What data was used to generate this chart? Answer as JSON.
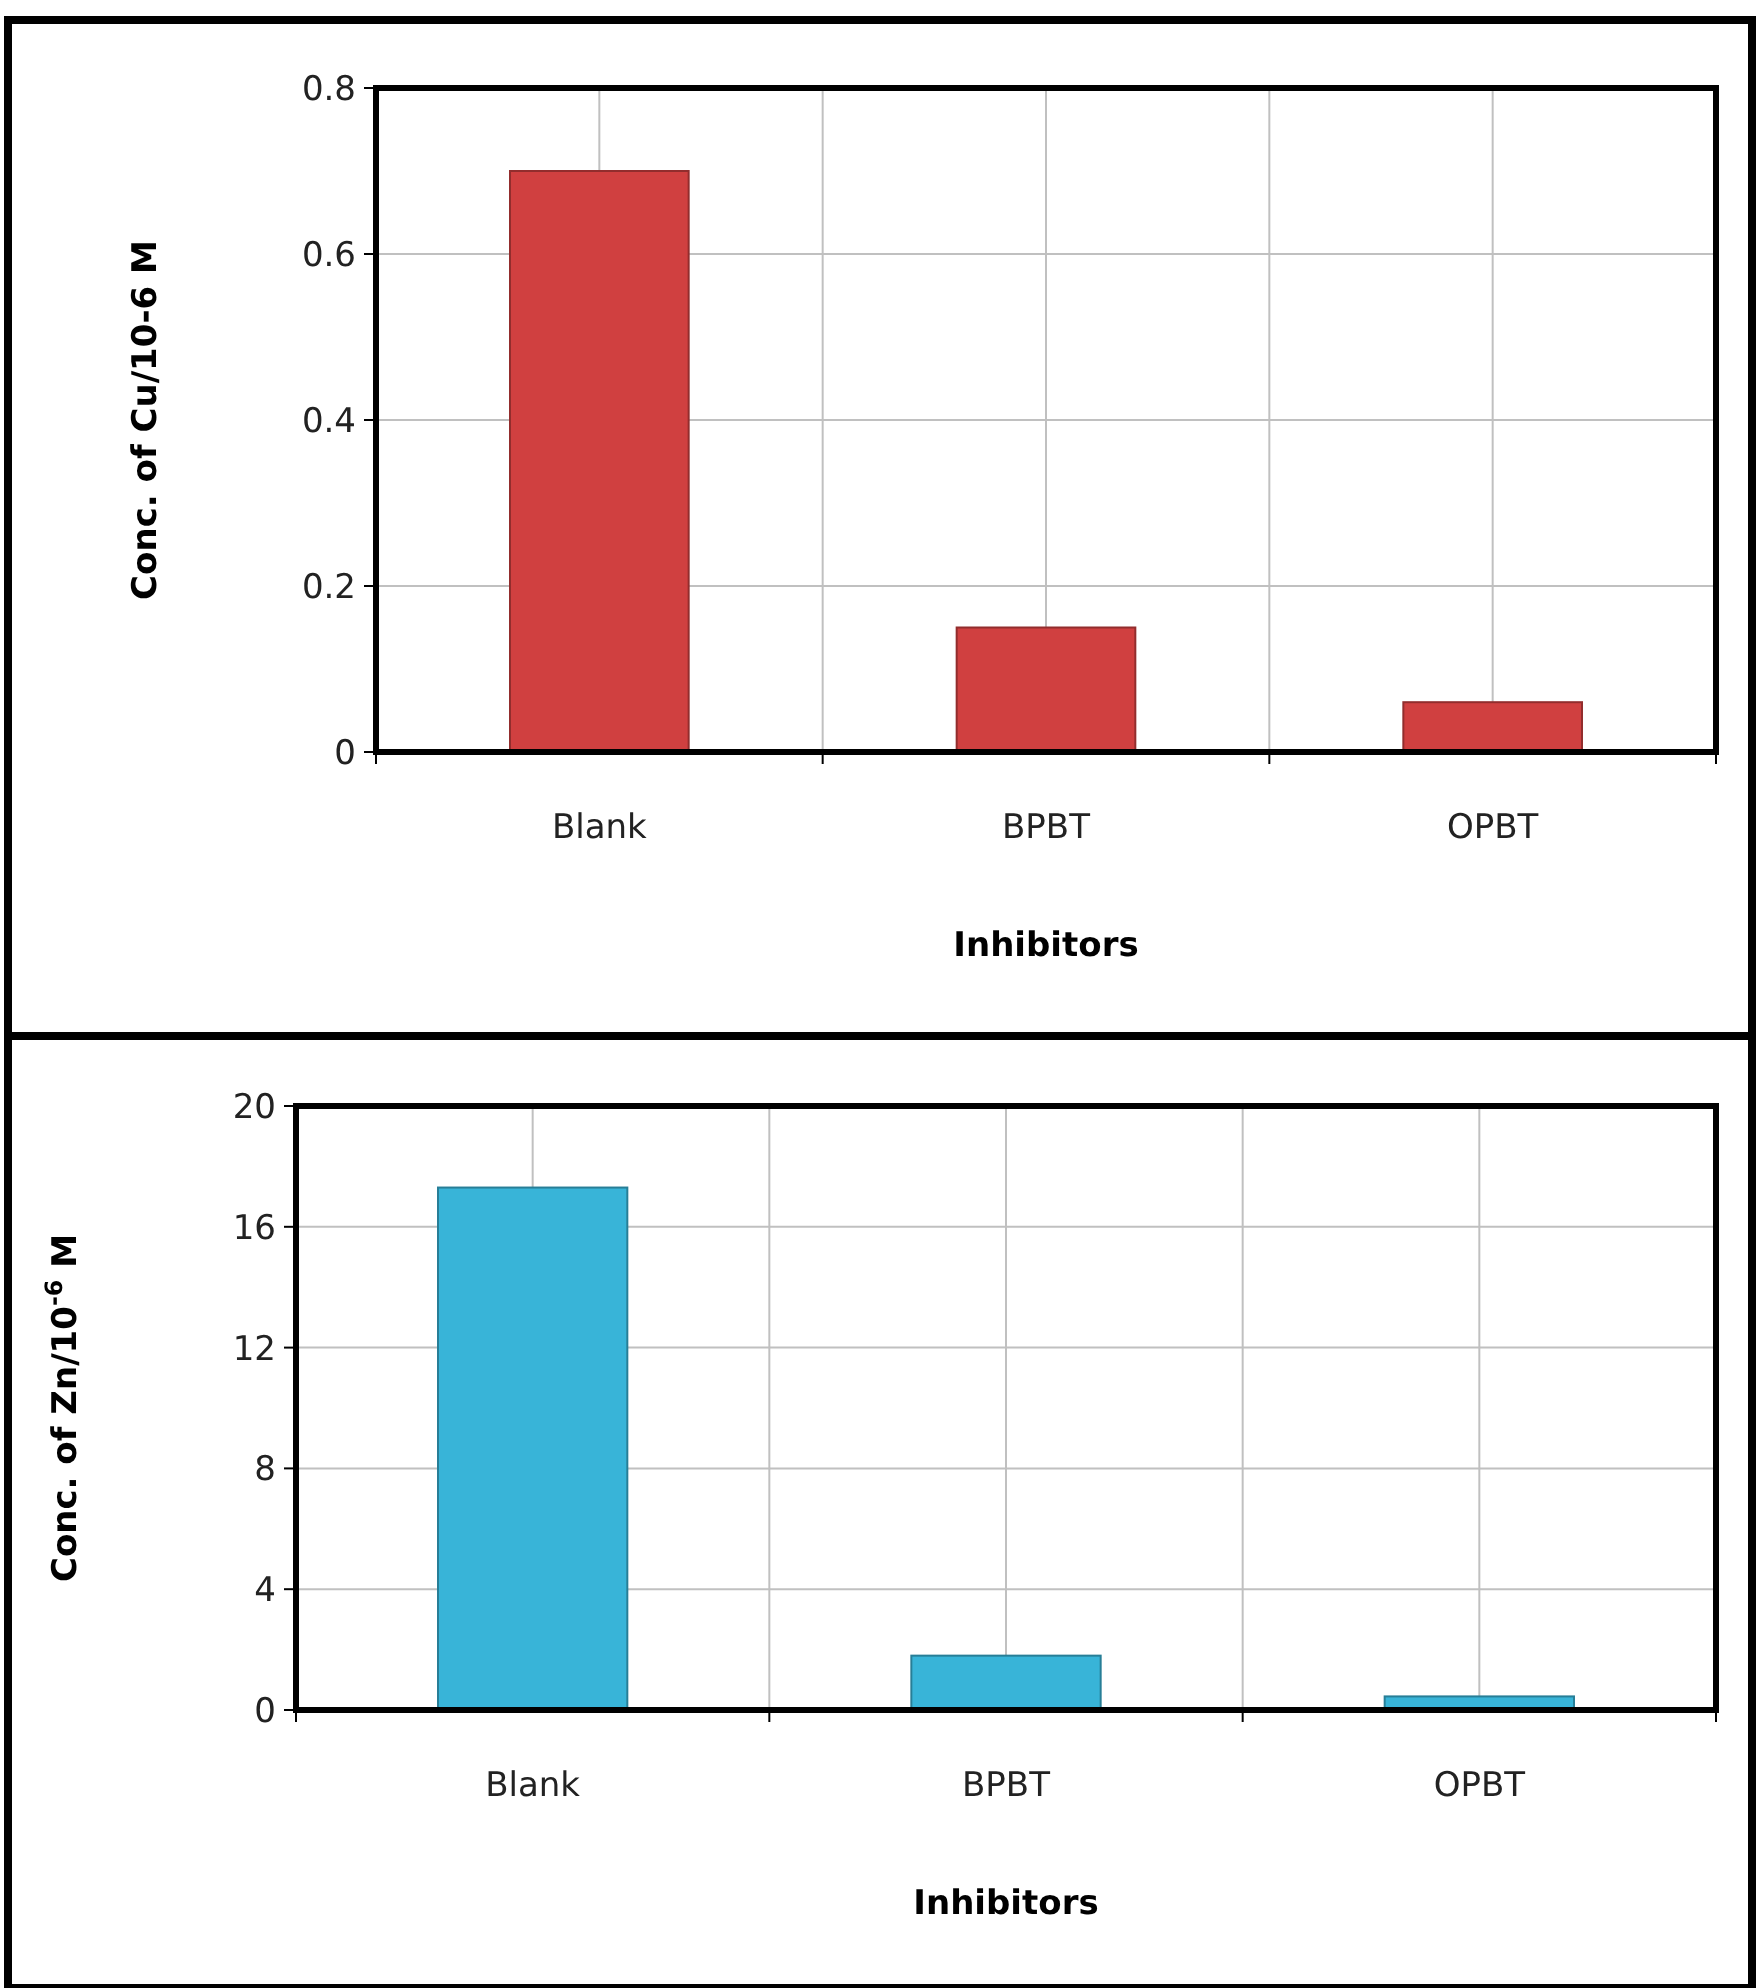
{
  "chart_data": [
    {
      "type": "bar",
      "xlabel": "Inhibitors",
      "ylabel": "Conc. of Cu/10-6 M",
      "categories": [
        "Blank",
        "BPBT",
        "OPBT"
      ],
      "values": [
        0.7,
        0.15,
        0.06
      ],
      "color": "#d04040",
      "ylim": [
        0,
        0.8
      ],
      "yticks": [
        0,
        0.2,
        0.4,
        0.6,
        0.8
      ],
      "grid": true
    },
    {
      "type": "bar",
      "xlabel": "Inhibitors",
      "ylabel": "Conc. of Zn/10$^{-6}$ M",
      "categories": [
        "Blank",
        "BPBT",
        "OPBT"
      ],
      "values": [
        17.3,
        1.8,
        0.45
      ],
      "color": "#38b4d8",
      "ylim": [
        0,
        20
      ],
      "yticks": [
        0,
        4,
        8,
        12,
        16,
        20
      ],
      "grid": true
    }
  ]
}
